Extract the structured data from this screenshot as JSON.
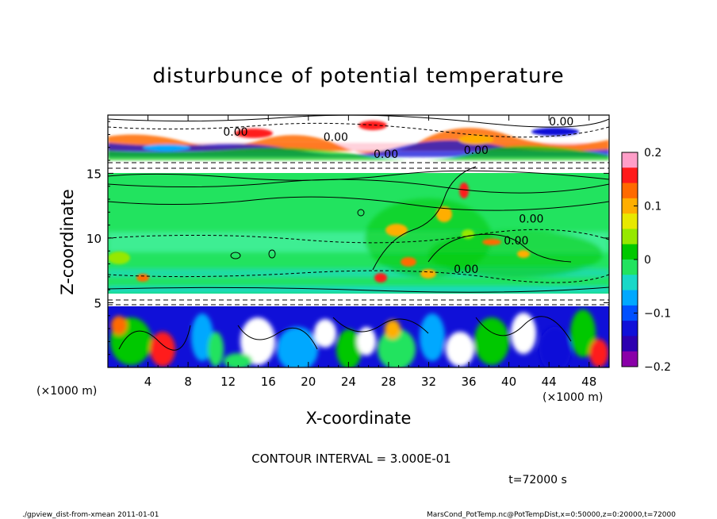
{
  "chart_data": {
    "type": "heatmap",
    "title": "disturbunce of potential temperature",
    "xlabel": "X-coordinate",
    "ylabel": "Z-coordinate",
    "x_unit": "(×1000 m)",
    "y_unit": "(×1000 m)",
    "xlim": [
      0,
      50
    ],
    "ylim": [
      0,
      19.5
    ],
    "x_ticks": [
      4,
      8,
      12,
      16,
      20,
      24,
      28,
      32,
      36,
      40,
      44,
      48
    ],
    "y_ticks": [
      5,
      10,
      15
    ],
    "colorbar": {
      "range": [
        -0.2,
        0.2
      ],
      "tick_values": [
        0.2,
        0.1,
        0,
        -0.1,
        -0.2
      ],
      "tick_labels": [
        "0.2",
        "0.1",
        "0",
        "−0.1",
        "−0.2"
      ],
      "colors": [
        "#ff9ec8",
        "#ff1b1b",
        "#ff6a00",
        "#ffae00",
        "#e8e800",
        "#96e800",
        "#00c800",
        "#22e35f",
        "#18d8c8",
        "#00a8ff",
        "#0050ff",
        "#1010d8",
        "#2d00b0",
        "#8a00a8"
      ]
    },
    "contour_labels": [
      {
        "text": "0.00",
        "x": 11.5,
        "z": 18.2
      },
      {
        "text": "0.00",
        "x": 21.5,
        "z": 17.8
      },
      {
        "text": "0.00",
        "x": 26.5,
        "z": 16.5
      },
      {
        "text": "0.00",
        "x": 35.5,
        "z": 16.8
      },
      {
        "text": "0.00",
        "x": 44.0,
        "z": 19.0
      },
      {
        "text": "0.00",
        "x": 41.0,
        "z": 11.5
      },
      {
        "text": "0.00",
        "x": 39.5,
        "z": 9.8
      },
      {
        "text": "0.00",
        "x": 34.5,
        "z": 7.6
      }
    ],
    "contour_interval": "CONTOUR INTERVAL = 3.000E-01",
    "time_label": "t=72000 s"
  },
  "footer": {
    "left": "./gpview_dist-from-xmean  2011-01-01",
    "right": "MarsCond_PotTemp.nc@PotTempDist,x=0:50000,z=0:20000,t=72000"
  }
}
